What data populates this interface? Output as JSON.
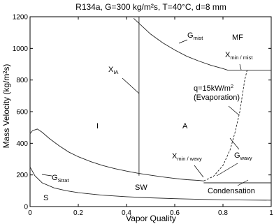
{
  "chart_data": {
    "type": "line",
    "title": "R134a, G=300 kg/m²s, T=40°C, d=8 mm",
    "xlabel": "Vapor Quality",
    "ylabel": "Mass Velocity (kg/m²s)",
    "xlim": [
      0,
      1
    ],
    "ylim": [
      0,
      1200
    ],
    "xticks": [
      "0",
      "0.2",
      "0.4",
      "0.6",
      "0.8",
      "1"
    ],
    "yticks": [
      "0",
      "200",
      "400",
      "600",
      "800",
      "1000",
      "1200"
    ],
    "grid": false,
    "series": [
      {
        "name": "G_mist",
        "style": "solid",
        "x": [
          0.43,
          0.5,
          0.55,
          0.6,
          0.65,
          0.7,
          0.75,
          0.8,
          0.82,
          1.0
        ],
        "y": [
          1190,
          1090,
          1035,
          990,
          950,
          920,
          893,
          872,
          862,
          862
        ]
      },
      {
        "name": "X_IA",
        "style": "solid",
        "x": [
          0.452,
          0.452
        ],
        "y": [
          195,
          1200
        ]
      },
      {
        "name": "G_wavy",
        "style": "solid",
        "x": [
          0.0,
          0.01,
          0.03,
          0.05,
          0.08,
          0.12,
          0.16,
          0.2,
          0.25,
          0.3,
          0.35,
          0.4,
          0.45,
          0.5,
          0.55,
          0.6,
          0.65,
          0.7,
          0.72
        ],
        "y": [
          460,
          480,
          490,
          470,
          430,
          385,
          345,
          315,
          285,
          260,
          240,
          224,
          210,
          198,
          187,
          178,
          170,
          165,
          162
        ]
      },
      {
        "name": "G_wavy (Evaporation)",
        "style": "dashed",
        "x": [
          0.72,
          0.76,
          0.8,
          0.83,
          0.85,
          0.87,
          0.88,
          0.89,
          0.9
        ],
        "y": [
          162,
          190,
          260,
          360,
          470,
          600,
          700,
          800,
          862
        ]
      },
      {
        "name": "Condensation",
        "style": "solid",
        "x": [
          0.72,
          1.0
        ],
        "y": [
          150,
          150
        ]
      },
      {
        "name": "G_Strat",
        "style": "solid",
        "x": [
          0.0,
          0.02,
          0.05,
          0.1,
          0.15,
          0.2,
          0.3,
          0.4,
          0.5,
          0.6,
          0.7,
          0.8,
          0.9,
          1.0
        ],
        "y": [
          250,
          195,
          150,
          118,
          100,
          88,
          72,
          62,
          55,
          50,
          46,
          43,
          41,
          40
        ]
      }
    ],
    "annotations": {
      "g_mist_main": "G",
      "g_mist_sub": "mist",
      "mf": "MF",
      "xmin_mist_main": "X",
      "xmin_mist_sub": "min / mist",
      "xia_main": "X",
      "xia_sub": "IA",
      "q_line1_main": "q=15kW/m",
      "q_line1_sup": "2",
      "q_line2": "(Evaporation)",
      "region_i": "I",
      "region_a": "A",
      "xmin_wavy_main": "X",
      "xmin_wavy_sub": "min / wavy",
      "g_wavy_main": "G",
      "g_wavy_sub": "wavy",
      "g_strat_main": "G",
      "g_strat_sub": "Strat",
      "region_sw": "SW",
      "condensation": "Condensation",
      "region_s": "S"
    }
  }
}
